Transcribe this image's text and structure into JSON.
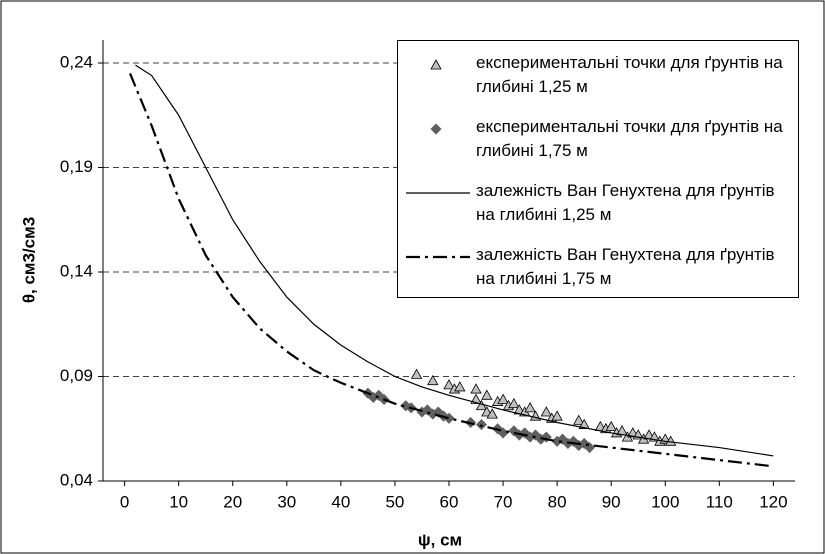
{
  "chart_data": {
    "type": "scatter",
    "xlabel": "ψ, см",
    "ylabel": "θ, см3/см3",
    "xlim": [
      -4,
      124
    ],
    "xticks": [
      0,
      10,
      20,
      30,
      40,
      50,
      60,
      70,
      80,
      90,
      100,
      110,
      120
    ],
    "ylim": [
      0.04,
      0.251
    ],
    "yticks": [
      {
        "value": 0.04,
        "label": "0,04"
      },
      {
        "value": 0.09,
        "label": "0,09"
      },
      {
        "value": 0.14,
        "label": "0,14"
      },
      {
        "value": 0.19,
        "label": "0,19"
      },
      {
        "value": 0.24,
        "label": "0,24"
      }
    ],
    "grid": true,
    "legend": "upper right",
    "series": [
      {
        "name": "експериментальні точки для ґрунтів на глибині 1,25 м",
        "color": "#c0c0c0",
        "marker": "triangle",
        "x": [
          54,
          57,
          60,
          61,
          62,
          65,
          65,
          66,
          67,
          67,
          68,
          69,
          70,
          71,
          72,
          73,
          74,
          75,
          76,
          78,
          79,
          80,
          84,
          85,
          88,
          89,
          90,
          91,
          92,
          93,
          94,
          95,
          96,
          97,
          98,
          99,
          100,
          101
        ],
        "values": [
          0.091,
          0.088,
          0.086,
          0.084,
          0.085,
          0.084,
          0.079,
          0.076,
          0.073,
          0.081,
          0.072,
          0.078,
          0.079,
          0.076,
          0.077,
          0.074,
          0.073,
          0.075,
          0.071,
          0.073,
          0.07,
          0.071,
          0.069,
          0.067,
          0.066,
          0.065,
          0.066,
          0.063,
          0.064,
          0.061,
          0.063,
          0.062,
          0.06,
          0.062,
          0.061,
          0.059,
          0.06,
          0.059
        ]
      },
      {
        "name": "експериментальні точки для ґрунтів на глибині 1,75 м",
        "color": "#606060",
        "marker": "diamond",
        "x": [
          45,
          46,
          47,
          48,
          52,
          53,
          55,
          56,
          57,
          58,
          59,
          60,
          64,
          66,
          69,
          70,
          72,
          73,
          74,
          75,
          76,
          77,
          78,
          80,
          81,
          82,
          83,
          84,
          85,
          86
        ],
        "values": [
          0.082,
          0.08,
          0.081,
          0.079,
          0.076,
          0.075,
          0.073,
          0.074,
          0.072,
          0.073,
          0.071,
          0.07,
          0.068,
          0.067,
          0.065,
          0.063,
          0.064,
          0.062,
          0.063,
          0.061,
          0.062,
          0.06,
          0.061,
          0.059,
          0.06,
          0.058,
          0.059,
          0.057,
          0.058,
          0.056
        ]
      },
      {
        "name": "залежність Ван Генухтена для ґрунтів на глибині 1,25 м",
        "color": "#000000",
        "line": "solid",
        "x": [
          2,
          5,
          10,
          15,
          20,
          25,
          30,
          35,
          40,
          45,
          50,
          55,
          60,
          70,
          80,
          90,
          100,
          110,
          120
        ],
        "values": [
          0.239,
          0.234,
          0.215,
          0.19,
          0.165,
          0.145,
          0.128,
          0.115,
          0.105,
          0.097,
          0.09,
          0.085,
          0.081,
          0.074,
          0.068,
          0.063,
          0.059,
          0.056,
          0.052
        ]
      },
      {
        "name": "залежність Ван Генухтена для ґрунтів на глибині 1,75 м",
        "color": "#000000",
        "line": "dashdot",
        "x": [
          1,
          5,
          10,
          15,
          20,
          25,
          30,
          35,
          40,
          50,
          60,
          70,
          80,
          90,
          100,
          110,
          120
        ],
        "values": [
          0.235,
          0.21,
          0.175,
          0.148,
          0.128,
          0.113,
          0.102,
          0.093,
          0.087,
          0.077,
          0.07,
          0.064,
          0.059,
          0.056,
          0.053,
          0.05,
          0.047
        ]
      }
    ]
  }
}
